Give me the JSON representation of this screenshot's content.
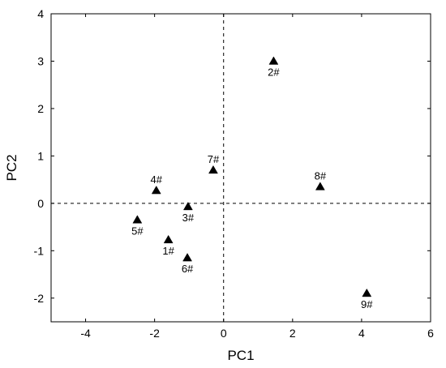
{
  "chart_data": {
    "type": "scatter",
    "title": "",
    "xlabel": "PC1",
    "ylabel": "PC2",
    "xlim": [
      -5,
      6
    ],
    "ylim": [
      -2.5,
      4
    ],
    "xticks": [
      -4,
      -2,
      0,
      2,
      4,
      6
    ],
    "yticks": [
      -2,
      -1,
      0,
      1,
      2,
      3,
      4
    ],
    "grid": false,
    "reference_lines": {
      "x": 0,
      "y": 0,
      "style": "dashed"
    },
    "marker": "triangle",
    "marker_color": "#000000",
    "points": [
      {
        "label": "1#",
        "x": -1.6,
        "y": -0.77,
        "label_pos": "below"
      },
      {
        "label": "2#",
        "x": 1.45,
        "y": 3.0,
        "label_pos": "below"
      },
      {
        "label": "3#",
        "x": -1.03,
        "y": -0.07,
        "label_pos": "below"
      },
      {
        "label": "4#",
        "x": -1.95,
        "y": 0.27,
        "label_pos": "above"
      },
      {
        "label": "5#",
        "x": -2.5,
        "y": -0.35,
        "label_pos": "below"
      },
      {
        "label": "6#",
        "x": -1.05,
        "y": -1.15,
        "label_pos": "below"
      },
      {
        "label": "7#",
        "x": -0.3,
        "y": 0.7,
        "label_pos": "above"
      },
      {
        "label": "8#",
        "x": 2.8,
        "y": 0.35,
        "label_pos": "above"
      },
      {
        "label": "9#",
        "x": 4.15,
        "y": -1.9,
        "label_pos": "below"
      }
    ]
  }
}
